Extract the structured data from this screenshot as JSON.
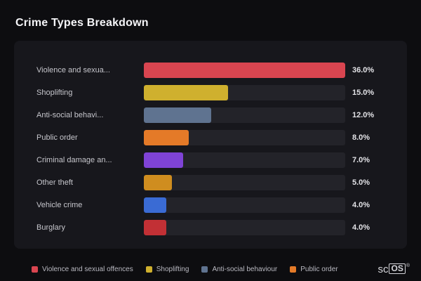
{
  "title": "Crime Types Breakdown",
  "chart_data": {
    "type": "bar",
    "orientation": "horizontal",
    "title": "Crime Types Breakdown",
    "xlim": [
      0,
      36
    ],
    "grid": false,
    "legend_position": "bottom",
    "rows": [
      {
        "label": "Violence and sexua...",
        "value": 36,
        "display": "36.0%",
        "color": "#d94550"
      },
      {
        "label": "Shoplifting",
        "value": 15,
        "display": "15.0%",
        "color": "#cfb02e"
      },
      {
        "label": "Anti-social behavi...",
        "value": 12,
        "display": "12.0%",
        "color": "#5f7390"
      },
      {
        "label": "Public order",
        "value": 8,
        "display": "8.0%",
        "color": "#e47a28"
      },
      {
        "label": "Criminal damage an...",
        "value": 7,
        "display": "7.0%",
        "color": "#7f43d6"
      },
      {
        "label": "Other theft",
        "value": 5,
        "display": "5.0%",
        "color": "#cf8d1f"
      },
      {
        "label": "Vehicle crime",
        "value": 4,
        "display": "4.0%",
        "color": "#3a6bd4"
      },
      {
        "label": "Burglary",
        "value": 4,
        "display": "4.0%",
        "color": "#c23035"
      }
    ],
    "legend": [
      {
        "label": "Violence and sexual offences",
        "color": "#d94550"
      },
      {
        "label": "Shoplifting",
        "color": "#cfb02e"
      },
      {
        "label": "Anti-social behaviour",
        "color": "#5f7390"
      },
      {
        "label": "Public order",
        "color": "#e47a28"
      }
    ]
  },
  "logo": {
    "prefix": "sc",
    "boxed": "OS",
    "registered": "®"
  }
}
